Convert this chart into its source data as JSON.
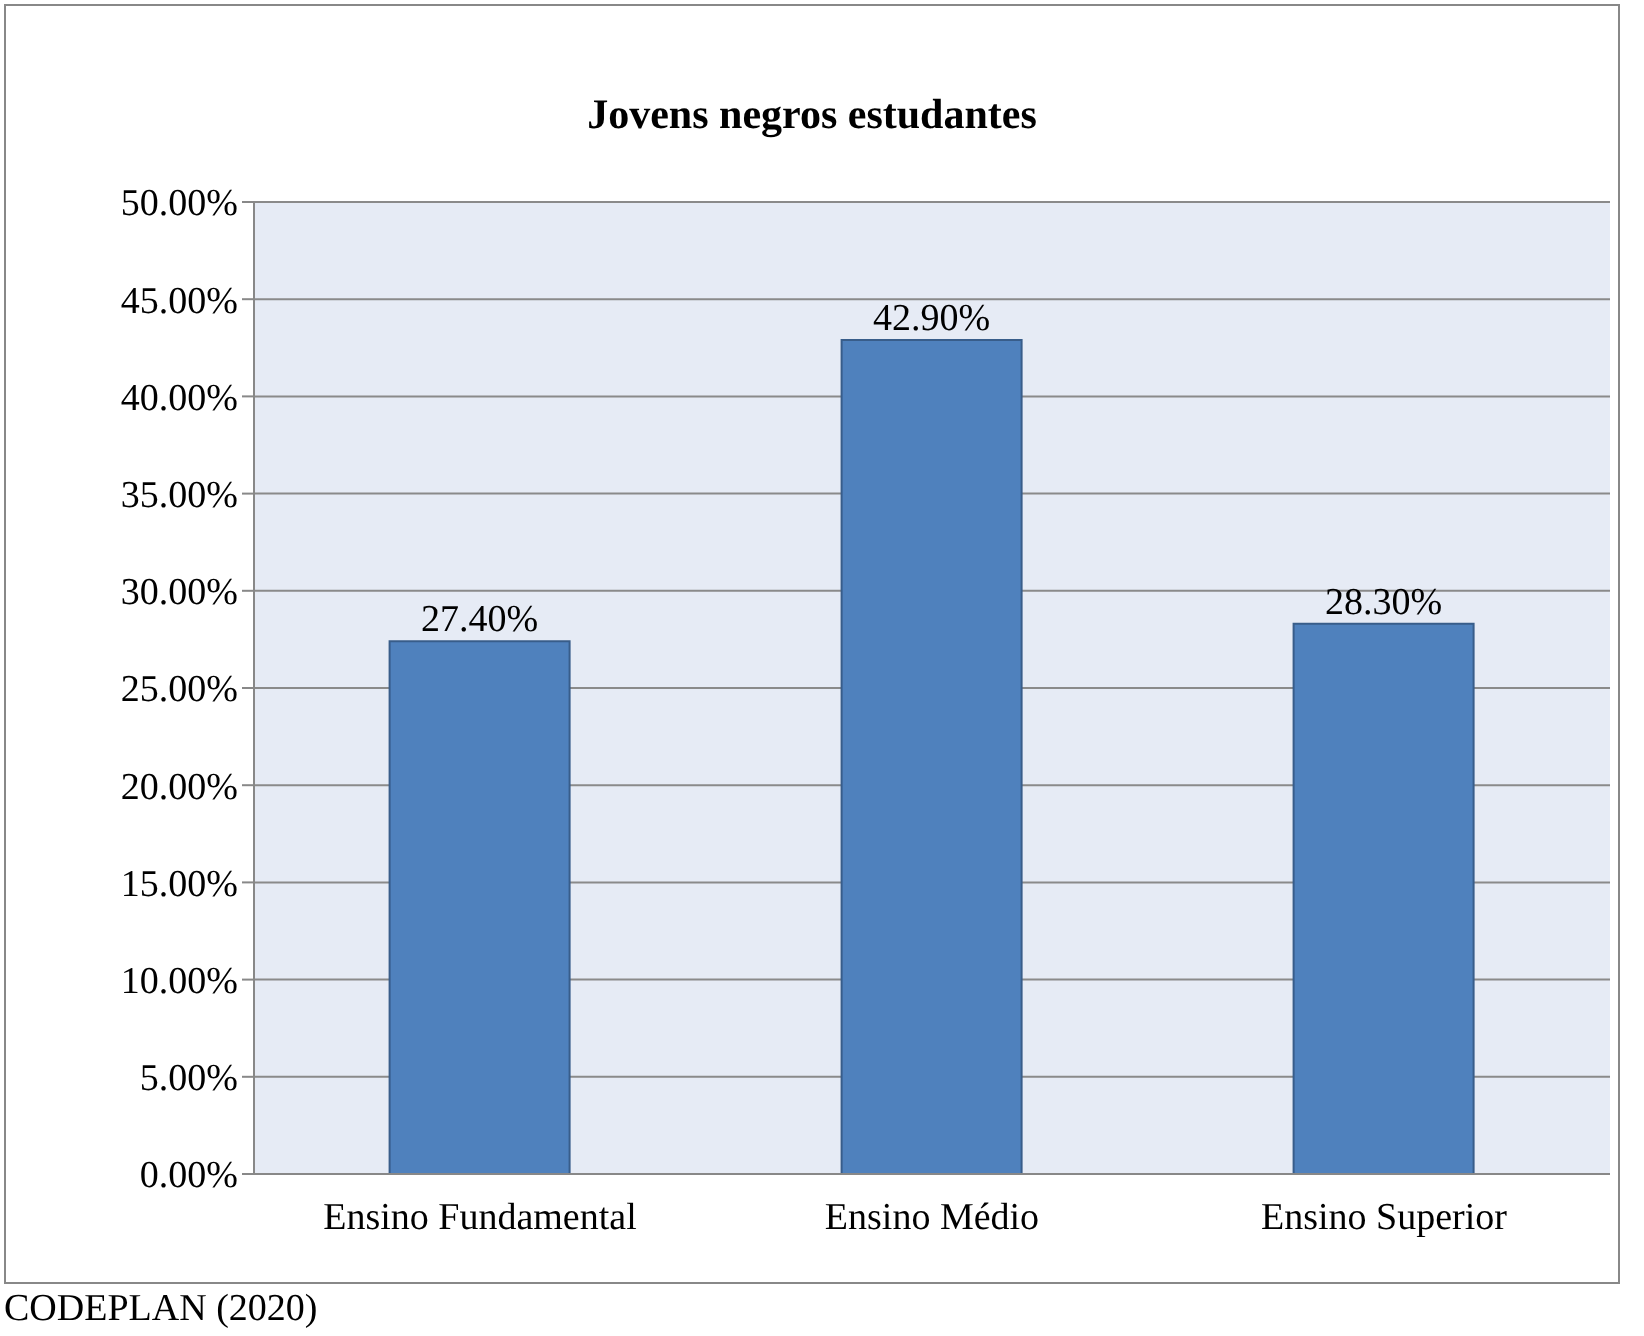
{
  "chart_data": {
    "type": "bar",
    "title": "Jovens negros estudantes",
    "categories": [
      "Ensino Fundamental",
      "Ensino Médio",
      "Ensino Superior"
    ],
    "values": [
      27.4,
      42.9,
      28.3
    ],
    "value_labels": [
      "27.40%",
      "42.90%",
      "28.30%"
    ],
    "color": "#4f81bd",
    "ylim": [
      0,
      50
    ],
    "yticks": [
      {
        "value": 0,
        "label": "0.00%"
      },
      {
        "value": 5,
        "label": "5.00%"
      },
      {
        "value": 10,
        "label": "10.00%"
      },
      {
        "value": 15,
        "label": "15.00%"
      },
      {
        "value": 20,
        "label": "20.00%"
      },
      {
        "value": 25,
        "label": "25.00%"
      },
      {
        "value": 30,
        "label": "30.00%"
      },
      {
        "value": 35,
        "label": "35.00%"
      },
      {
        "value": 40,
        "label": "40.00%"
      },
      {
        "value": 45,
        "label": "45.00%"
      },
      {
        "value": 50,
        "label": "50.00%"
      }
    ],
    "grid": "y",
    "annotations": [
      "CODEPLAN (2020)"
    ]
  }
}
